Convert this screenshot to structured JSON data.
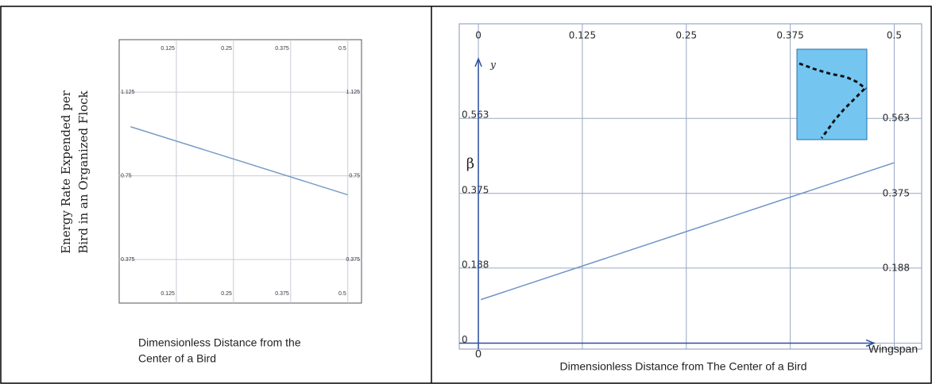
{
  "chart_data": [
    {
      "type": "line",
      "ylabel": [
        "Energy Rate Expended per",
        "Bird in an Organized Flock"
      ],
      "xlabel": [
        "Dimensionless Distance from the",
        "Center of a Bird"
      ],
      "x": [
        0.025,
        0.5
      ],
      "values": [
        0.97,
        0.665
      ],
      "color": "#7a9cc6",
      "xlim": [
        0,
        0.53
      ],
      "xticks": [
        0.125,
        0.25,
        0.375,
        0.5
      ],
      "ylim": [
        0.18,
        1.36
      ],
      "yticks": [
        0.375,
        0.75,
        1.125
      ],
      "grid": true
    },
    {
      "type": "line",
      "ylabel": "β",
      "y_axis_name": "y",
      "x_axis_name": "Wingspan",
      "xlabel": "Dimensionless Distance from The Center of a Bird",
      "x": [
        0.003,
        0.5
      ],
      "values": [
        0.109,
        0.452
      ],
      "color": "#6f93c8",
      "xlim": [
        -0.023,
        0.533
      ],
      "xticks": [
        0,
        0.125,
        0.25,
        0.375,
        0.5
      ],
      "ylim": [
        -0.015,
        0.8
      ],
      "yticks": [
        0,
        0.188,
        0.375,
        0.563
      ],
      "grid": true
    }
  ]
}
